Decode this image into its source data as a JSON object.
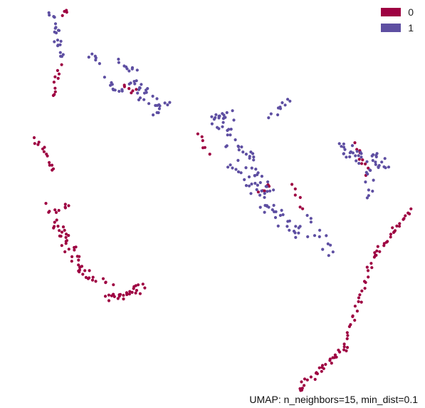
{
  "chart_data": {
    "type": "scatter",
    "title": "",
    "xlabel": "",
    "ylabel": "",
    "axes_visible": false,
    "grid": false,
    "legend_placement": "top-right",
    "annotation": "UMAP: n_neighbors=15, min_dist=0.1",
    "xlim": [
      0,
      100
    ],
    "ylim": [
      0,
      100
    ],
    "series": [
      {
        "name": "0",
        "color": "#9e0142",
        "clusters": [
          {
            "from": [
              14.5,
              96.4
            ],
            "to": [
              16.0,
              97.0
            ],
            "n": 4,
            "spread": 0.6
          },
          {
            "from": [
              12.3,
              76.2
            ],
            "to": [
              14.0,
              83.7
            ],
            "n": 10,
            "spread": 0.6
          },
          {
            "from": [
              8.2,
              66.4
            ],
            "to": [
              12.5,
              58.5
            ],
            "n": 14,
            "spread": 1.0
          },
          {
            "from": [
              11.0,
              49.1
            ],
            "to": [
              16.5,
              49.1
            ],
            "n": 10,
            "spread": 1.2
          },
          {
            "from": [
              13.0,
              45.5
            ],
            "to": [
              20.5,
              31.7
            ],
            "n": 40,
            "spread": 1.4
          },
          {
            "from": [
              21.0,
              32.5
            ],
            "to": [
              26.0,
              30.5
            ],
            "n": 8,
            "spread": 0.8
          },
          {
            "from": [
              25.6,
              26.6
            ],
            "to": [
              33.5,
              29.5
            ],
            "n": 28,
            "spread": 1.0
          },
          {
            "from": [
              29.0,
              78.5
            ],
            "to": [
              32.0,
              77.5
            ],
            "n": 6,
            "spread": 0.8
          },
          {
            "from": [
              46.8,
              66.8
            ],
            "to": [
              49.0,
              62.5
            ],
            "n": 6,
            "spread": 0.6
          },
          {
            "from": [
              61.0,
              52.5
            ],
            "to": [
              63.5,
              55.2
            ],
            "n": 6,
            "spread": 0.6
          },
          {
            "from": [
              69.0,
              55.0
            ],
            "to": [
              71.5,
              48.5
            ],
            "n": 6,
            "spread": 0.6
          },
          {
            "from": [
              83.5,
              64.8
            ],
            "to": [
              86.5,
              57.5
            ],
            "n": 10,
            "spread": 0.8
          },
          {
            "from": [
              96.5,
              48.3
            ],
            "to": [
              88.0,
              37.5
            ],
            "n": 24,
            "spread": 0.6
          },
          {
            "from": [
              88.0,
              37.5
            ],
            "to": [
              81.0,
              14.5
            ],
            "n": 28,
            "spread": 0.6
          },
          {
            "from": [
              81.0,
              14.5
            ],
            "to": [
              70.0,
              4.5
            ],
            "n": 30,
            "spread": 0.8
          }
        ]
      },
      {
        "name": "1",
        "color": "#5e4fa2",
        "clusters": [
          {
            "from": [
              12.0,
              97.0
            ],
            "to": [
              14.5,
              86.5
            ],
            "n": 22,
            "spread": 0.9
          },
          {
            "from": [
              21.5,
              86.5
            ],
            "to": [
              23.5,
              84.5
            ],
            "n": 6,
            "spread": 0.7
          },
          {
            "from": [
              25.0,
              80.5
            ],
            "to": [
              28.5,
              77.0
            ],
            "n": 10,
            "spread": 1.0
          },
          {
            "from": [
              29.0,
              84.5
            ],
            "to": [
              36.5,
              72.5
            ],
            "n": 34,
            "spread": 1.6
          },
          {
            "from": [
              36.5,
              74.0
            ],
            "to": [
              40.0,
              74.5
            ],
            "n": 6,
            "spread": 0.5
          },
          {
            "from": [
              49.5,
              70.5
            ],
            "to": [
              54.5,
              72.0
            ],
            "n": 16,
            "spread": 1.4
          },
          {
            "from": [
              51.0,
              70.0
            ],
            "to": [
              64.0,
              53.5
            ],
            "n": 40,
            "spread": 1.8
          },
          {
            "from": [
              63.5,
              71.5
            ],
            "to": [
              69.0,
              75.5
            ],
            "n": 10,
            "spread": 0.8
          },
          {
            "from": [
              58.0,
              56.0
            ],
            "to": [
              71.0,
              42.0
            ],
            "n": 40,
            "spread": 1.8
          },
          {
            "from": [
              73.0,
              47.0
            ],
            "to": [
              78.0,
              37.0
            ],
            "n": 12,
            "spread": 1.2
          },
          {
            "from": [
              80.0,
              64.0
            ],
            "to": [
              90.5,
              59.5
            ],
            "n": 36,
            "spread": 1.6
          },
          {
            "from": [
              87.5,
              60.5
            ],
            "to": [
              86.5,
              51.5
            ],
            "n": 12,
            "spread": 1.0
          },
          {
            "from": [
              54.0,
              59.5
            ],
            "to": [
              56.5,
              57.5
            ],
            "n": 6,
            "spread": 0.5
          }
        ]
      }
    ]
  }
}
